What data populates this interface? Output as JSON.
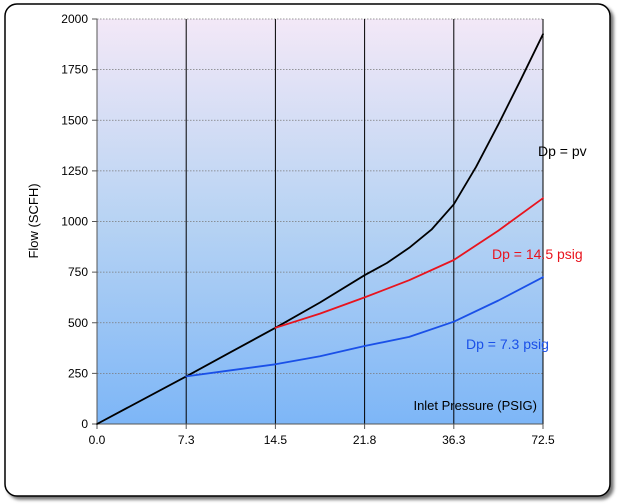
{
  "chart_data": {
    "type": "line",
    "xlabel": "Inlet Pressure (PSIG)",
    "ylabel": "Flow (SCFH)",
    "x_tick_labels": [
      "0.0",
      "7.3",
      "14.5",
      "21.8",
      "36.3",
      "72.5"
    ],
    "y_ticks": [
      0,
      250,
      500,
      750,
      1000,
      1250,
      1500,
      1750,
      2000
    ],
    "ylim": [
      0,
      2000
    ],
    "grid": "vertical lines at each x tick, horizontal dashed lines at each y tick",
    "background": "gradient from light pink (top) to light blue (bottom)",
    "series": [
      {
        "name": "Dp = pv",
        "color": "#000000",
        "x_index": [
          0,
          1,
          1.5,
          2,
          2.5,
          3,
          3.25,
          3.5,
          3.75,
          4,
          4.25,
          4.5,
          4.75,
          5
        ],
        "values": [
          0,
          235,
          355,
          475,
          600,
          735,
          795,
          870,
          960,
          1085,
          1270,
          1480,
          1700,
          1925
        ]
      },
      {
        "name": "Dp = 14.5 psig",
        "color": "#e8141e",
        "x_index": [
          2,
          2.5,
          3,
          3.5,
          4,
          4.5,
          5
        ],
        "values": [
          475,
          545,
          625,
          710,
          810,
          955,
          1115
        ]
      },
      {
        "name": "Dp = 7.3 psig",
        "color": "#1a50e8",
        "x_index": [
          1,
          1.5,
          2,
          2.5,
          3,
          3.5,
          4,
          4.5,
          5
        ],
        "values": [
          235,
          265,
          295,
          335,
          385,
          430,
          505,
          610,
          725
        ]
      }
    ]
  }
}
